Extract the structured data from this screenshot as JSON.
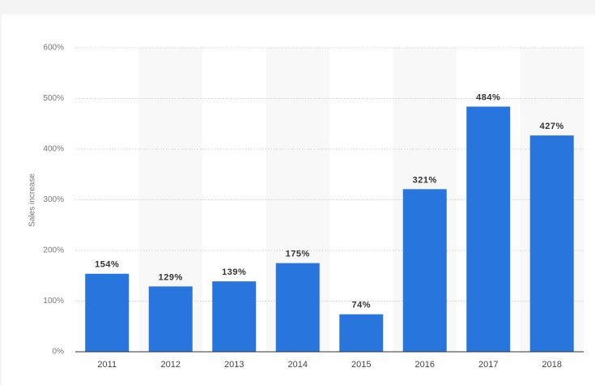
{
  "chart_data": {
    "type": "bar",
    "y_label": "Sales increase",
    "categories": [
      "2011",
      "2012",
      "2013",
      "2014",
      "2015",
      "2016",
      "2017",
      "2018"
    ],
    "values": [
      154,
      129,
      139,
      175,
      74,
      321,
      484,
      427
    ],
    "value_labels": [
      "154%",
      "129%",
      "139%",
      "175%",
      "74%",
      "321%",
      "484%",
      "427%"
    ],
    "color": "#2876dd",
    "ylim": [
      0,
      600
    ],
    "yticks": [
      {
        "value": 0,
        "label": "0%"
      },
      {
        "value": 100,
        "label": "100%"
      },
      {
        "value": 200,
        "label": "200%"
      },
      {
        "value": 300,
        "label": "300%"
      },
      {
        "value": 400,
        "label": "400%"
      },
      {
        "value": 500,
        "label": "500%"
      },
      {
        "value": 600,
        "label": "600%"
      }
    ],
    "grid": true
  }
}
